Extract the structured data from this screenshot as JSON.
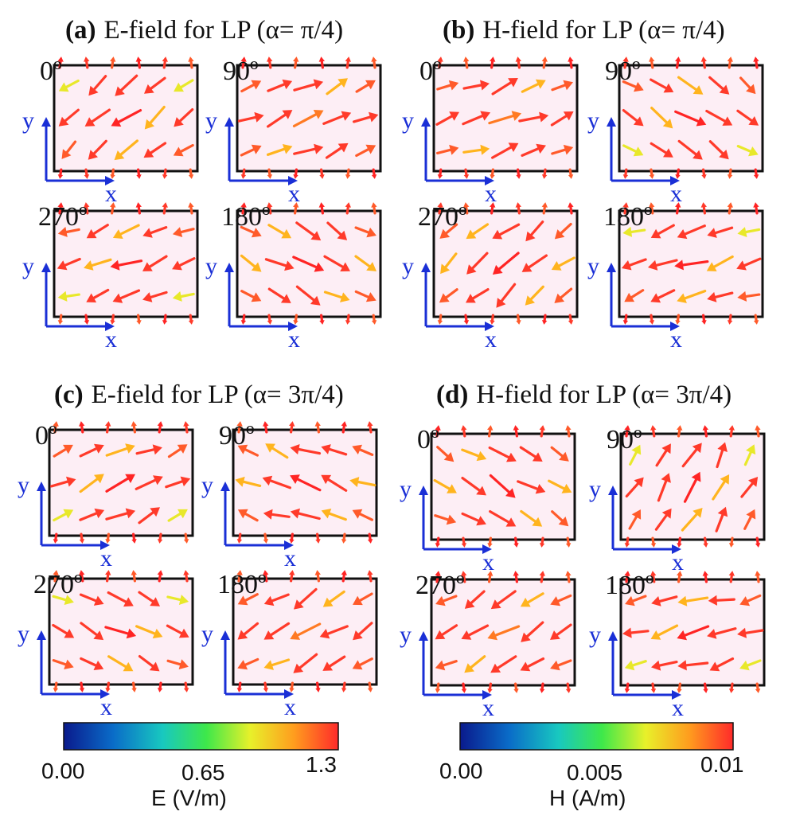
{
  "figure": {
    "panels": [
      {
        "label": "(a)",
        "title": "E-field for LP (α= π/4)",
        "field": "E",
        "cells": [
          {
            "phase": "0º",
            "dir_deg": -140,
            "mid_len": 1.0
          },
          {
            "phase": "90º",
            "dir_deg": 25,
            "mid_len": 1.0
          },
          {
            "phase": "270º",
            "dir_deg": 200,
            "mid_len": 0.9
          },
          {
            "phase": "180º",
            "dir_deg": -30,
            "mid_len": 1.0
          }
        ]
      },
      {
        "label": "(b)",
        "title": "H-field for LP (α= π/4)",
        "field": "H",
        "cells": [
          {
            "phase": "0º",
            "dir_deg": 20,
            "mid_len": 1.0
          },
          {
            "phase": "90º",
            "dir_deg": -35,
            "mid_len": 1.0
          },
          {
            "phase": "270º",
            "dir_deg": -140,
            "mid_len": 1.0
          },
          {
            "phase": "180º",
            "dir_deg": 200,
            "mid_len": 1.0
          }
        ]
      },
      {
        "label": "(c)",
        "title": "E-field for LP (α= 3π/4)",
        "field": "E",
        "cells": [
          {
            "phase": "0º",
            "dir_deg": 25,
            "mid_len": 1.0
          },
          {
            "phase": "90º",
            "dir_deg": 160,
            "mid_len": 1.0
          },
          {
            "phase": "270º",
            "dir_deg": -25,
            "mid_len": 0.9
          },
          {
            "phase": "180º",
            "dir_deg": 210,
            "mid_len": 1.0
          }
        ]
      },
      {
        "label": "(d)",
        "title": "H-field for LP (α= 3π/4)",
        "field": "H",
        "cells": [
          {
            "phase": "0º",
            "dir_deg": -30,
            "mid_len": 1.0
          },
          {
            "phase": "90º",
            "dir_deg": 60,
            "mid_len": 1.0
          },
          {
            "phase": "270º",
            "dir_deg": 210,
            "mid_len": 1.0
          },
          {
            "phase": "180º",
            "dir_deg": -165,
            "mid_len": 1.0
          }
        ]
      }
    ],
    "axis_labels": {
      "x": "x",
      "y": "y"
    },
    "colorbars": [
      {
        "field": "E",
        "ticks": [
          "0.00",
          "0.65",
          "1.3"
        ],
        "unit": "E (V/m)"
      },
      {
        "field": "H",
        "ticks": [
          "0.00",
          "0.005",
          "0.01"
        ],
        "unit": "H (A/m)"
      }
    ],
    "colors": {
      "patch_fill": "#fdeef5",
      "patch_border": "#111111",
      "axis_color": "#1a2fd6",
      "colormap": [
        "#0a1a8c",
        "#0a6cc8",
        "#18c8c0",
        "#3ee84a",
        "#e8f02a",
        "#ff9c1e",
        "#ff2a2a"
      ]
    }
  }
}
